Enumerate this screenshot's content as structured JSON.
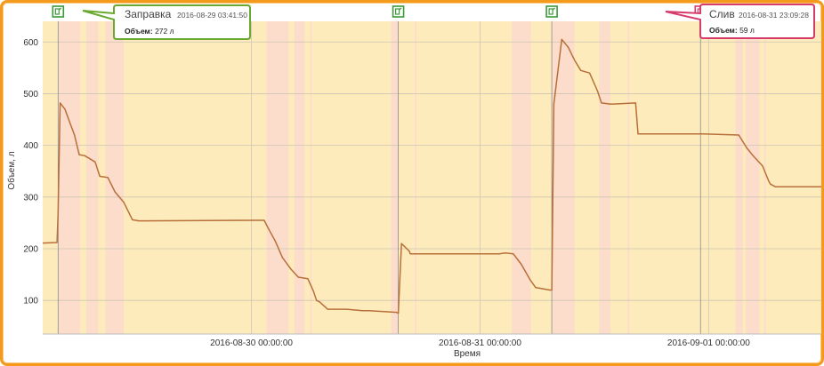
{
  "chart_data": {
    "type": "line",
    "xlabel": "Время",
    "ylabel": "Объем, л",
    "ylim": [
      35,
      640
    ],
    "xlim": [
      "2016-08-29 02:05",
      "2016-09-01 11:50"
    ],
    "x_ticks": [
      "2016-08-30 00:00:00",
      "2016-08-31 00:00:00",
      "2016-09-01 00:00:00"
    ],
    "y_ticks": [
      100,
      200,
      300,
      400,
      500,
      600
    ],
    "grid": true,
    "colors": {
      "line": "#b86f3a",
      "band_stop": "#fcdcca",
      "band_move": "#fdebbc",
      "refuel_marker": "#3a9a3a",
      "drain_marker": "#d63c6b",
      "frame": "#f39a1d"
    },
    "bands": [
      {
        "type": "stop",
        "from": "2016-08-29 03:42",
        "to": "2016-08-29 06:00"
      },
      {
        "type": "stop",
        "from": "2016-08-29 06:40",
        "to": "2016-08-29 07:55"
      },
      {
        "type": "stop",
        "from": "2016-08-29 08:40",
        "to": "2016-08-29 10:35"
      },
      {
        "type": "stop",
        "from": "2016-08-30 01:35",
        "to": "2016-08-30 03:55"
      },
      {
        "type": "stop",
        "from": "2016-08-30 04:30",
        "to": "2016-08-30 05:35"
      },
      {
        "type": "stop",
        "from": "2016-08-30 06:10",
        "to": "2016-08-30 06:20"
      },
      {
        "type": "stop",
        "from": "2016-08-30 14:40",
        "to": "2016-08-30 15:25"
      },
      {
        "type": "stop",
        "from": "2016-08-30 17:10",
        "to": "2016-08-30 17:20"
      },
      {
        "type": "stop",
        "from": "2016-08-31 03:20",
        "to": "2016-08-31 05:20"
      },
      {
        "type": "stop",
        "from": "2016-08-31 07:35",
        "to": "2016-08-31 09:55"
      },
      {
        "type": "stop",
        "from": "2016-08-31 12:30",
        "to": "2016-08-31 13:40"
      },
      {
        "type": "stop",
        "from": "2016-08-31 15:30",
        "to": "2016-08-31 15:40"
      },
      {
        "type": "stop",
        "from": "2016-09-01 02:50",
        "to": "2016-09-01 03:35"
      },
      {
        "type": "stop",
        "from": "2016-09-01 03:55",
        "to": "2016-09-01 05:20"
      },
      {
        "type": "stop",
        "from": "2016-09-01 05:50",
        "to": "2016-09-01 06:00"
      }
    ],
    "series": [
      {
        "x": [
          "2016-08-29 02:05",
          "2016-08-29 03:35",
          "2016-08-29 03:42",
          "2016-08-29 03:55",
          "2016-08-29 04:25",
          "2016-08-29 04:55",
          "2016-08-29 05:25",
          "2016-08-29 05:55",
          "2016-08-29 06:30",
          "2016-08-29 07:35",
          "2016-08-29 08:05",
          "2016-08-29 08:55",
          "2016-08-29 09:40",
          "2016-08-29 10:35",
          "2016-08-29 11:30",
          "2016-08-29 12:10",
          "2016-08-29 12:40",
          "2016-08-30 00:00",
          "2016-08-30 01:20",
          "2016-08-30 01:45",
          "2016-08-30 02:30",
          "2016-08-30 03:15",
          "2016-08-30 04:10",
          "2016-08-30 04:55",
          "2016-08-30 05:55",
          "2016-08-30 06:30",
          "2016-08-30 06:50",
          "2016-08-30 07:10",
          "2016-08-30 08:00",
          "2016-08-30 10:00",
          "2016-08-30 11:40",
          "2016-08-30 12:20",
          "2016-08-30 14:20",
          "2016-08-30 15:15",
          "2016-08-30 15:25",
          "2016-08-30 15:45",
          "2016-08-30 16:35",
          "2016-08-30 16:40",
          "2016-08-30 17:00",
          "2016-08-30 18:30",
          "2016-08-31 01:25",
          "2016-08-31 02:00",
          "2016-08-31 02:40",
          "2016-08-31 03:30",
          "2016-08-31 04:20",
          "2016-08-31 05:15",
          "2016-08-31 05:50",
          "2016-08-31 07:20",
          "2016-08-31 07:32",
          "2016-08-31 07:45",
          "2016-08-31 08:35",
          "2016-08-31 09:15",
          "2016-08-31 09:55",
          "2016-08-31 10:35",
          "2016-08-31 11:30",
          "2016-08-31 12:20",
          "2016-08-31 12:45",
          "2016-08-31 13:40",
          "2016-08-31 14:00",
          "2016-08-31 16:20",
          "2016-08-31 16:35",
          "2016-08-31 23:10",
          "2016-08-31 23:25",
          "2016-09-01 03:10",
          "2016-09-01 04:00",
          "2016-09-01 04:40",
          "2016-09-01 05:40",
          "2016-09-01 06:20",
          "2016-09-01 06:30",
          "2016-09-01 07:00",
          "2016-09-01 07:10",
          "2016-09-01 11:50"
        ],
        "y": [
          211,
          212,
          270,
          482,
          470,
          445,
          420,
          382,
          380,
          368,
          340,
          338,
          310,
          290,
          256,
          254,
          254,
          255,
          255,
          240,
          215,
          183,
          160,
          145,
          142,
          118,
          100,
          97,
          83,
          83,
          80,
          80,
          78,
          77,
          75,
          210,
          195,
          190,
          190,
          190,
          190,
          190,
          192,
          190,
          170,
          140,
          125,
          120,
          120,
          480,
          605,
          590,
          565,
          545,
          540,
          505,
          482,
          480,
          480,
          482,
          422,
          422,
          422,
          420,
          395,
          380,
          360,
          330,
          325,
          320,
          320,
          320
        ]
      }
    ],
    "annotations": [
      {
        "type": "refuel",
        "x": "2016-08-29 03:41:50",
        "title": "Заправка",
        "time": "2016-08-29 03:41:50",
        "volume_label": "Объем:",
        "volume_value": "272 л"
      },
      {
        "type": "drain",
        "x": "2016-08-31 23:09:28",
        "title": "Слив",
        "time": "2016-08-31 23:09:28",
        "volume_label": "Объем:",
        "volume_value": "59 л"
      }
    ],
    "event_markers": [
      {
        "type": "refuel",
        "x": "2016-08-29 03:42"
      },
      {
        "type": "refuel",
        "x": "2016-08-30 15:25"
      },
      {
        "type": "refuel",
        "x": "2016-08-31 07:32"
      },
      {
        "type": "drain",
        "x": "2016-08-31 23:09"
      }
    ]
  }
}
